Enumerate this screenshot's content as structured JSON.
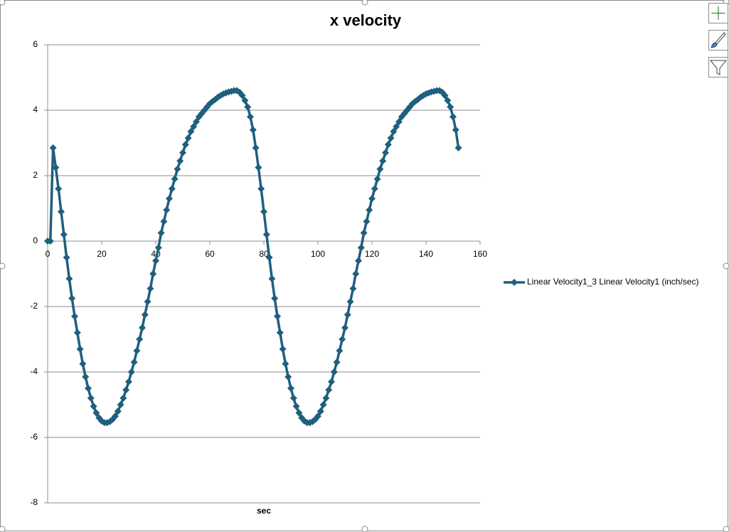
{
  "chart_data": {
    "type": "line",
    "title": "x velocity",
    "x_label": "sec",
    "x": [
      0,
      1,
      2,
      3,
      4,
      5,
      6,
      7,
      8,
      9,
      10,
      11,
      12,
      13,
      14,
      15,
      16,
      17,
      18,
      19,
      20,
      21,
      22,
      23,
      24,
      25,
      26,
      27,
      28,
      29,
      30,
      31,
      32,
      33,
      34,
      35,
      36,
      37,
      38,
      39,
      40,
      41,
      42,
      43,
      44,
      45,
      46,
      47,
      48,
      49,
      50,
      51,
      52,
      53,
      54,
      55,
      56,
      57,
      58,
      59,
      60,
      61,
      62,
      63,
      64,
      65,
      66,
      67,
      68,
      69,
      70,
      71,
      72,
      73,
      74,
      75,
      76,
      77,
      78,
      79,
      80,
      81,
      82,
      83,
      84,
      85,
      86,
      87,
      88,
      89,
      90,
      91,
      92,
      93,
      94,
      95,
      96,
      97,
      98,
      99,
      100,
      101,
      102,
      103,
      104,
      105,
      106,
      107,
      108,
      109,
      110,
      111,
      112,
      113,
      114,
      115,
      116,
      117,
      118,
      119,
      120,
      121,
      122,
      123,
      124,
      125,
      126,
      127,
      128,
      129,
      130,
      131,
      132,
      133,
      134,
      135,
      136,
      137,
      138,
      139,
      140,
      141,
      142,
      143,
      144,
      145,
      146,
      147,
      148,
      149,
      150,
      151,
      152
    ],
    "series": [
      {
        "name": "Linear Velocity1_3 Linear Velocity1 (inch/sec)",
        "color": "#1f5f7e",
        "values": [
          0,
          0,
          2.85,
          2.25,
          1.6,
          0.9,
          0.2,
          -0.5,
          -1.15,
          -1.75,
          -2.3,
          -2.8,
          -3.3,
          -3.75,
          -4.15,
          -4.5,
          -4.8,
          -5.05,
          -5.25,
          -5.4,
          -5.5,
          -5.55,
          -5.55,
          -5.52,
          -5.45,
          -5.35,
          -5.2,
          -5.0,
          -4.8,
          -4.55,
          -4.3,
          -4.0,
          -3.7,
          -3.35,
          -3.0,
          -2.65,
          -2.25,
          -1.85,
          -1.45,
          -1.0,
          -0.6,
          -0.2,
          0.25,
          0.6,
          0.95,
          1.3,
          1.6,
          1.9,
          2.2,
          2.45,
          2.7,
          2.95,
          3.15,
          3.35,
          3.5,
          3.65,
          3.8,
          3.9,
          4.0,
          4.1,
          4.2,
          4.27,
          4.33,
          4.4,
          4.45,
          4.5,
          4.53,
          4.56,
          4.58,
          4.6,
          4.6,
          4.55,
          4.45,
          4.3,
          4.1,
          3.8,
          3.4,
          2.85,
          2.25,
          1.6,
          0.9,
          0.2,
          -0.5,
          -1.15,
          -1.75,
          -2.3,
          -2.8,
          -3.3,
          -3.75,
          -4.15,
          -4.5,
          -4.8,
          -5.05,
          -5.25,
          -5.4,
          -5.5,
          -5.55,
          -5.55,
          -5.52,
          -5.45,
          -5.35,
          -5.2,
          -5.0,
          -4.8,
          -4.55,
          -4.3,
          -4.0,
          -3.7,
          -3.35,
          -3.0,
          -2.65,
          -2.25,
          -1.85,
          -1.45,
          -1.0,
          -0.6,
          -0.2,
          0.25,
          0.6,
          0.95,
          1.3,
          1.6,
          1.9,
          2.2,
          2.45,
          2.7,
          2.95,
          3.15,
          3.35,
          3.5,
          3.65,
          3.8,
          3.9,
          4.0,
          4.1,
          4.2,
          4.27,
          4.33,
          4.4,
          4.45,
          4.5,
          4.53,
          4.56,
          4.58,
          4.6,
          4.6,
          4.55,
          4.45,
          4.3,
          4.1,
          3.8,
          3.4,
          2.85
        ]
      }
    ],
    "xlim": [
      0,
      160
    ],
    "xticks": [
      0,
      20,
      40,
      60,
      80,
      100,
      120,
      140,
      160
    ],
    "ylim": [
      -8,
      6
    ],
    "yticks": [
      -8,
      -6,
      -4,
      -2,
      0,
      2,
      4,
      6
    ],
    "grid": true,
    "legend": "right"
  }
}
